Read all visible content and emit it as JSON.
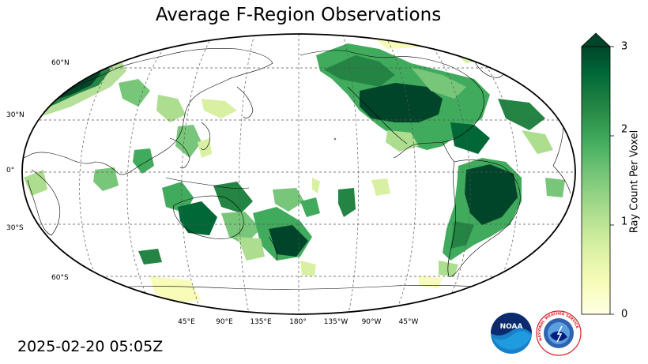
{
  "title": "Average F-Region Observations",
  "timestamp": "2025-02-20 05:05Z",
  "map": {
    "projection": "Robinson, centered on 180°",
    "lat_labels": [
      "60°N",
      "30°N",
      "0°",
      "30°S",
      "60°S"
    ],
    "lon_labels": [
      "45°E",
      "90°E",
      "135°E",
      "180°",
      "135°W",
      "90°W",
      "45°W"
    ],
    "gridlines": "dashed"
  },
  "colorbar": {
    "label": "Ray Count Per Voxel",
    "ticks": [
      "0",
      "1",
      "2",
      "3"
    ],
    "range": [
      0,
      3
    ],
    "extend": "max",
    "colormap": "YlGn",
    "colors": [
      "#ffffe5",
      "#f7fcb9",
      "#d9f0a3",
      "#addd8e",
      "#78c679",
      "#41ab5d",
      "#238443",
      "#006837",
      "#004529"
    ]
  },
  "logos": {
    "noaa_text": "NOAA",
    "nws_text": "NATIONAL WEATHER SERVICE"
  }
}
